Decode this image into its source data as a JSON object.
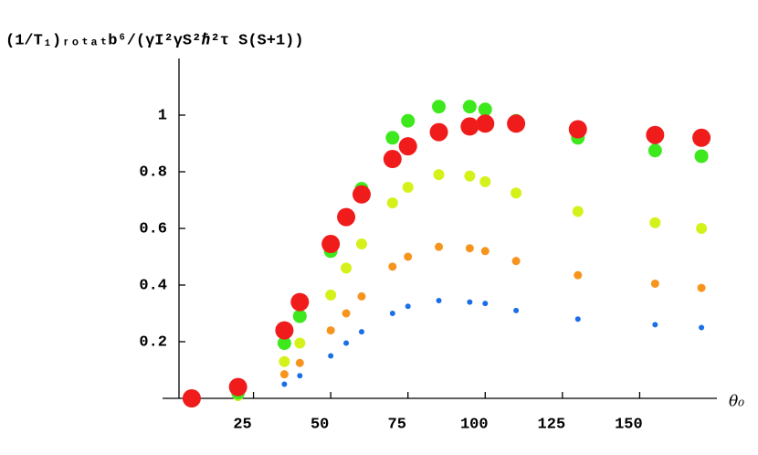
{
  "chart_data": {
    "type": "scatter",
    "title": "(1/T₁)ᵣₒₜₐₜb⁶/(γI²γS²ℏ²τ S(S+1))",
    "x_label": "θ₀",
    "x": [
      5,
      20,
      35,
      40,
      50,
      55,
      60,
      70,
      75,
      85,
      95,
      100,
      110,
      130,
      155,
      170
    ],
    "series": [
      {
        "color": "#1a6fe8",
        "values": [
          0,
          0.003,
          0.05,
          0.08,
          0.15,
          0.195,
          0.235,
          0.3,
          0.325,
          0.345,
          0.34,
          0.335,
          0.31,
          0.28,
          0.26,
          0.25
        ]
      },
      {
        "color": "#f7941d",
        "values": [
          0,
          0.005,
          0.085,
          0.125,
          0.24,
          0.3,
          0.36,
          0.465,
          0.5,
          0.535,
          0.53,
          0.52,
          0.485,
          0.435,
          0.405,
          0.39
        ]
      },
      {
        "color": "#d4f21a",
        "values": [
          0,
          0.01,
          0.13,
          0.195,
          0.365,
          0.46,
          0.545,
          0.69,
          0.745,
          0.79,
          0.785,
          0.765,
          0.725,
          0.66,
          0.62,
          0.6
        ]
      },
      {
        "color": "#3de81c",
        "values": [
          0,
          0.02,
          0.195,
          0.29,
          0.52,
          0.64,
          0.74,
          0.92,
          0.98,
          1.03,
          1.03,
          1.02,
          0.98,
          0.92,
          0.875,
          0.855
        ]
      },
      {
        "color": "#f01c1c",
        "values": [
          0,
          0.04,
          0.24,
          0.34,
          0.545,
          0.64,
          0.72,
          0.845,
          0.89,
          0.94,
          0.96,
          0.97,
          0.97,
          0.95,
          0.93,
          0.92
        ]
      }
    ],
    "xlim": [
      0,
      175
    ],
    "ylim": [
      0,
      1.2
    ],
    "xticks": [
      25,
      50,
      75,
      100,
      125,
      150
    ],
    "yticks": [
      0.2,
      0.4,
      0.6,
      0.8,
      1
    ]
  }
}
